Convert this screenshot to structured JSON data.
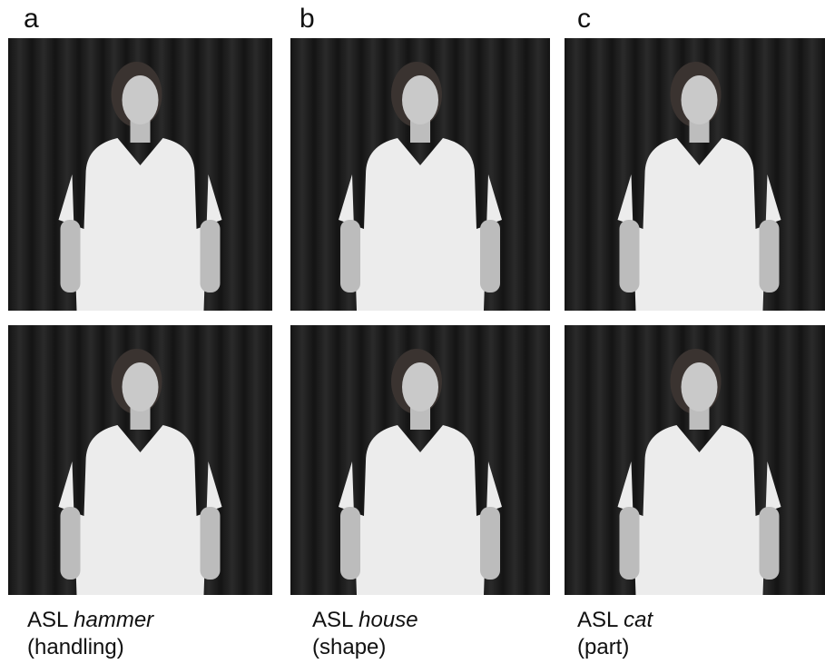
{
  "columns": [
    {
      "label": "a",
      "prefix": "ASL",
      "sign": "hammer",
      "category": "(handling)"
    },
    {
      "label": "b",
      "prefix": "ASL",
      "sign": "house",
      "category": "(shape)"
    },
    {
      "label": "c",
      "prefix": "ASL",
      "sign": "cat",
      "category": "(part)"
    }
  ]
}
